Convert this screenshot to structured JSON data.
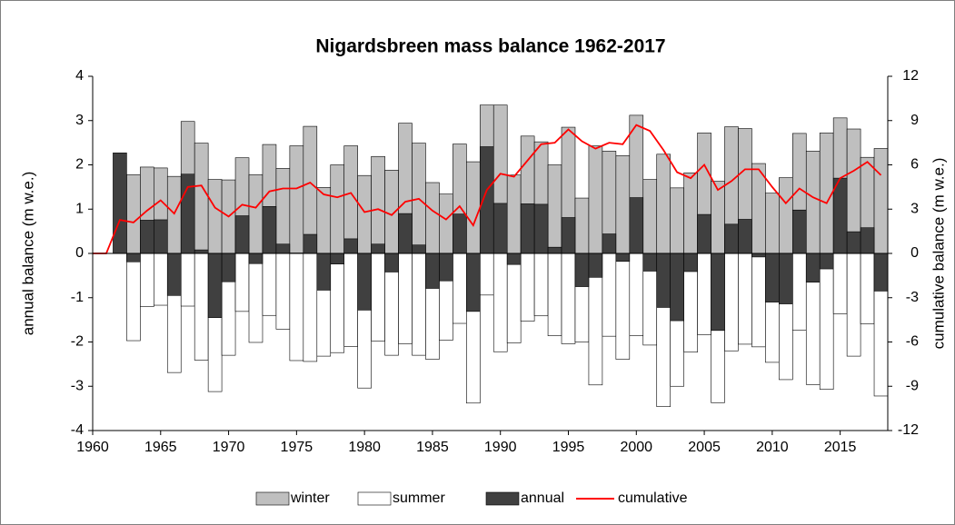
{
  "chart_data": {
    "type": "bar",
    "title": "Nigardsbreen mass balance 1962-2017",
    "ylabel": "annual balance (m w.e.)",
    "y2label": "cumulative balance (m w.e.)",
    "x": [
      1962,
      1963,
      1964,
      1965,
      1966,
      1967,
      1968,
      1969,
      1970,
      1971,
      1972,
      1973,
      1974,
      1975,
      1976,
      1977,
      1978,
      1979,
      1980,
      1981,
      1982,
      1983,
      1984,
      1985,
      1986,
      1987,
      1988,
      1989,
      1990,
      1991,
      1992,
      1993,
      1994,
      1995,
      1996,
      1997,
      1998,
      1999,
      2000,
      2001,
      2002,
      2003,
      2004,
      2005,
      2006,
      2007,
      2008,
      2009,
      2010,
      2011,
      2012,
      2013,
      2014,
      2015,
      2016,
      2017,
      2018
    ],
    "series": [
      {
        "name": "winter",
        "color": "#bfbfbf",
        "axis": "y",
        "values": [
          null,
          1.78,
          1.95,
          1.93,
          1.74,
          2.98,
          2.49,
          1.67,
          1.66,
          2.16,
          1.78,
          2.46,
          1.92,
          2.43,
          2.87,
          1.49,
          2.0,
          2.43,
          1.76,
          2.19,
          1.88,
          2.94,
          2.49,
          1.6,
          1.34,
          2.47,
          2.07,
          3.35,
          3.35,
          1.77,
          2.65,
          2.52,
          2.0,
          2.85,
          1.25,
          2.43,
          2.31,
          2.21,
          3.12,
          1.67,
          2.24,
          1.48,
          1.82,
          2.72,
          1.63,
          2.86,
          2.82,
          2.03,
          1.36,
          1.71,
          2.71,
          2.31,
          2.72,
          3.06,
          2.81,
          2.17,
          2.37
        ]
      },
      {
        "name": "summer",
        "color": "#ffffff",
        "axis": "y",
        "values": [
          null,
          -1.97,
          -1.2,
          -1.17,
          -2.69,
          -1.19,
          -2.41,
          -3.12,
          -2.3,
          -1.31,
          -2.01,
          -1.4,
          -1.71,
          -2.42,
          -2.44,
          -2.32,
          -2.24,
          -2.1,
          -3.04,
          -1.98,
          -2.3,
          -2.04,
          -2.3,
          -2.39,
          -1.96,
          -1.58,
          -3.38,
          -0.94,
          -2.22,
          -2.02,
          -1.53,
          -1.41,
          -1.86,
          -2.04,
          -2.0,
          -2.97,
          -1.87,
          -2.39,
          -1.86,
          -2.07,
          -3.46,
          -3.0,
          -2.23,
          -1.84,
          -3.37,
          -2.2,
          -2.05,
          -2.11,
          -2.46,
          -2.85,
          -1.73,
          -2.96,
          -3.07,
          -1.36,
          -2.32,
          -1.59,
          -3.22
        ]
      },
      {
        "name": "annual",
        "color": "#404040",
        "axis": "y",
        "values": [
          2.27,
          -0.19,
          0.75,
          0.76,
          -0.95,
          1.79,
          0.08,
          -1.45,
          -0.64,
          0.85,
          -0.23,
          1.06,
          0.21,
          0.01,
          0.43,
          -0.83,
          -0.24,
          0.33,
          -1.28,
          0.21,
          -0.42,
          0.9,
          0.19,
          -0.79,
          -0.62,
          0.89,
          -1.31,
          2.41,
          1.13,
          -0.25,
          1.12,
          1.11,
          0.14,
          0.81,
          -0.75,
          -0.54,
          0.44,
          -0.18,
          1.26,
          -0.4,
          -1.22,
          -1.52,
          -0.41,
          0.88,
          -1.74,
          0.66,
          0.77,
          -0.08,
          -1.1,
          -1.14,
          0.98,
          -0.65,
          -0.35,
          1.7,
          0.49,
          0.58,
          -0.85
        ]
      },
      {
        "name": "cumulative",
        "color": "#ff0000",
        "axis": "y2",
        "type": "line",
        "x": [
          1960,
          1961,
          1962,
          1963,
          1964,
          1965,
          1966,
          1967,
          1968,
          1969,
          1970,
          1971,
          1972,
          1973,
          1974,
          1975,
          1976,
          1977,
          1978,
          1979,
          1980,
          1981,
          1982,
          1983,
          1984,
          1985,
          1986,
          1987,
          1988,
          1989,
          1990,
          1991,
          1992,
          1993,
          1994,
          1995,
          1996,
          1997,
          1998,
          1999,
          2000,
          2001,
          2002,
          2003,
          2004,
          2005,
          2006,
          2007,
          2008,
          2009,
          2010,
          2011,
          2012,
          2013,
          2014,
          2015,
          2016,
          2017,
          2018
        ],
        "values": [
          0,
          0,
          2.27,
          2.1,
          2.9,
          3.6,
          2.7,
          4.5,
          4.6,
          3.1,
          2.5,
          3.3,
          3.1,
          4.2,
          4.4,
          4.4,
          4.8,
          4.0,
          3.8,
          4.1,
          2.8,
          3.0,
          2.6,
          3.5,
          3.7,
          2.9,
          2.3,
          3.2,
          1.9,
          4.3,
          5.4,
          5.2,
          6.3,
          7.4,
          7.5,
          8.4,
          7.6,
          7.1,
          7.5,
          7.4,
          8.7,
          8.3,
          7.0,
          5.5,
          5.1,
          6.0,
          4.3,
          4.9,
          5.7,
          5.7,
          4.5,
          3.4,
          4.4,
          3.8,
          3.4,
          5.1,
          5.6,
          6.2,
          5.3
        ]
      }
    ],
    "xlim": [
      1960,
      2018.5
    ],
    "xticks": [
      1960,
      1965,
      1970,
      1975,
      1980,
      1985,
      1990,
      1995,
      2000,
      2005,
      2010,
      2015
    ],
    "ylim": [
      -4,
      4
    ],
    "yticks": [
      -4,
      -3,
      -2,
      -1,
      0,
      1,
      2,
      3,
      4
    ],
    "y2lim": [
      -12,
      12
    ],
    "y2ticks": [
      -12,
      -9,
      -6,
      -3,
      0,
      3,
      6,
      9,
      12
    ],
    "legend": "bottom"
  }
}
